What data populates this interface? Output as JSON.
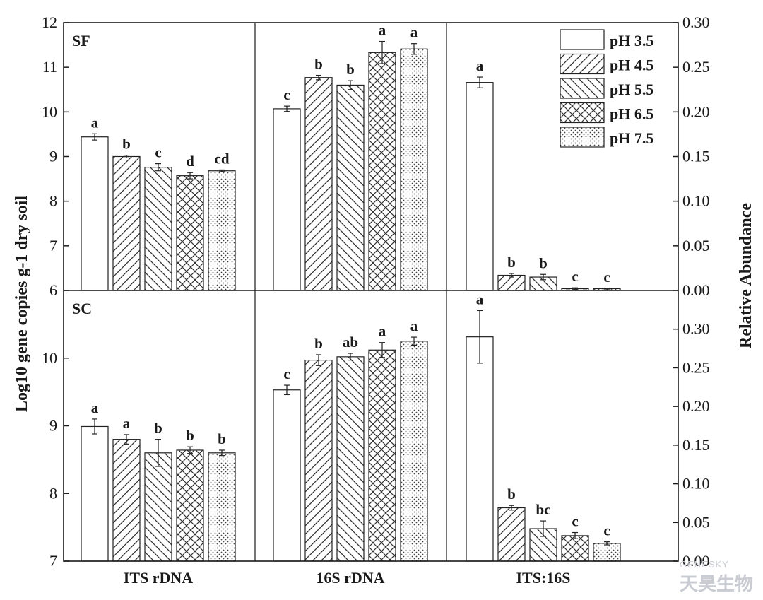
{
  "chart_data": {
    "type": "bar",
    "categories": [
      "ITS rDNA",
      "16S rDNA",
      "ITS:16S"
    ],
    "legend": {
      "placement": "top-right",
      "entries": [
        "pH 3.5",
        "pH 4.5",
        "pH 5.5",
        "pH 6.5",
        "pH 7.5"
      ],
      "patterns": [
        "none",
        "diagonal-forward",
        "diagonal-back",
        "crosshatch",
        "dots"
      ]
    },
    "ylabel_left": "Log10 gene copies g-1 dry soil",
    "ylabel_right": "Relative Abundance",
    "grid": false,
    "panels": [
      {
        "label": "SF",
        "ylim_left": [
          6,
          12
        ],
        "yticks_left": [
          "6",
          "7",
          "8",
          "9",
          "10",
          "11",
          "12"
        ],
        "ylim_right": [
          0,
          0.3
        ],
        "yticks_right": [
          "0.00",
          "0.05",
          "0.10",
          "0.15",
          "0.20",
          "0.25",
          "0.30"
        ],
        "series": [
          {
            "name": "pH 3.5",
            "values": [
              9.44,
              10.07,
              0.233
            ],
            "errors": [
              0.07,
              0.06,
              0.006
            ],
            "letters": [
              "a",
              "c",
              "a"
            ]
          },
          {
            "name": "pH 4.5",
            "values": [
              9.0,
              10.77,
              0.017
            ],
            "errors": [
              0.03,
              0.05,
              0.002
            ],
            "letters": [
              "b",
              "b",
              "b"
            ]
          },
          {
            "name": "pH 5.5",
            "values": [
              8.76,
              10.6,
              0.015
            ],
            "errors": [
              0.08,
              0.1,
              0.003
            ],
            "letters": [
              "c",
              "b",
              "b"
            ]
          },
          {
            "name": "pH 6.5",
            "values": [
              8.57,
              11.33,
              0.002
            ],
            "errors": [
              0.07,
              0.25,
              0.001
            ],
            "letters": [
              "d",
              "a",
              "c"
            ]
          },
          {
            "name": "pH 7.5",
            "values": [
              8.68,
              11.41,
              0.002
            ],
            "errors": [
              0.02,
              0.12,
              0.0005
            ],
            "letters": [
              "cd",
              "a",
              "c"
            ]
          }
        ]
      },
      {
        "label": "SC",
        "ylim_left": [
          7,
          11
        ],
        "yticks_left": [
          "7",
          "8",
          "9",
          "10"
        ],
        "ylim_right": [
          0,
          0.35
        ],
        "yticks_right": [
          "0.00",
          "0.05",
          "0.10",
          "0.15",
          "0.20",
          "0.25",
          "0.30"
        ],
        "series": [
          {
            "name": "pH 3.5",
            "values": [
              8.99,
              9.53,
              0.29
            ],
            "errors": [
              0.11,
              0.07,
              0.034
            ],
            "letters": [
              "a",
              "c",
              "a"
            ]
          },
          {
            "name": "pH 4.5",
            "values": [
              8.8,
              9.97,
              0.069
            ],
            "errors": [
              0.07,
              0.08,
              0.003
            ],
            "letters": [
              "a",
              "b",
              "b"
            ]
          },
          {
            "name": "pH 5.5",
            "values": [
              8.6,
              10.02,
              0.042
            ],
            "errors": [
              0.2,
              0.05,
              0.01
            ],
            "letters": [
              "b",
              "ab",
              "bc"
            ]
          },
          {
            "name": "pH 6.5",
            "values": [
              8.64,
              10.12,
              0.033
            ],
            "errors": [
              0.05,
              0.11,
              0.004
            ],
            "letters": [
              "b",
              "a",
              "c"
            ]
          },
          {
            "name": "pH 7.5",
            "values": [
              8.6,
              10.25,
              0.023
            ],
            "errors": [
              0.04,
              0.06,
              0.002
            ],
            "letters": [
              "b",
              "a",
              "c"
            ]
          }
        ]
      }
    ]
  },
  "watermark": {
    "en": "GENESKY",
    "cn": "天昊生物"
  },
  "colors": {
    "axis": "#1a1a1a",
    "bar_fill": "#ffffff",
    "pattern": "#333333",
    "watermark": "#c9ccd3"
  }
}
